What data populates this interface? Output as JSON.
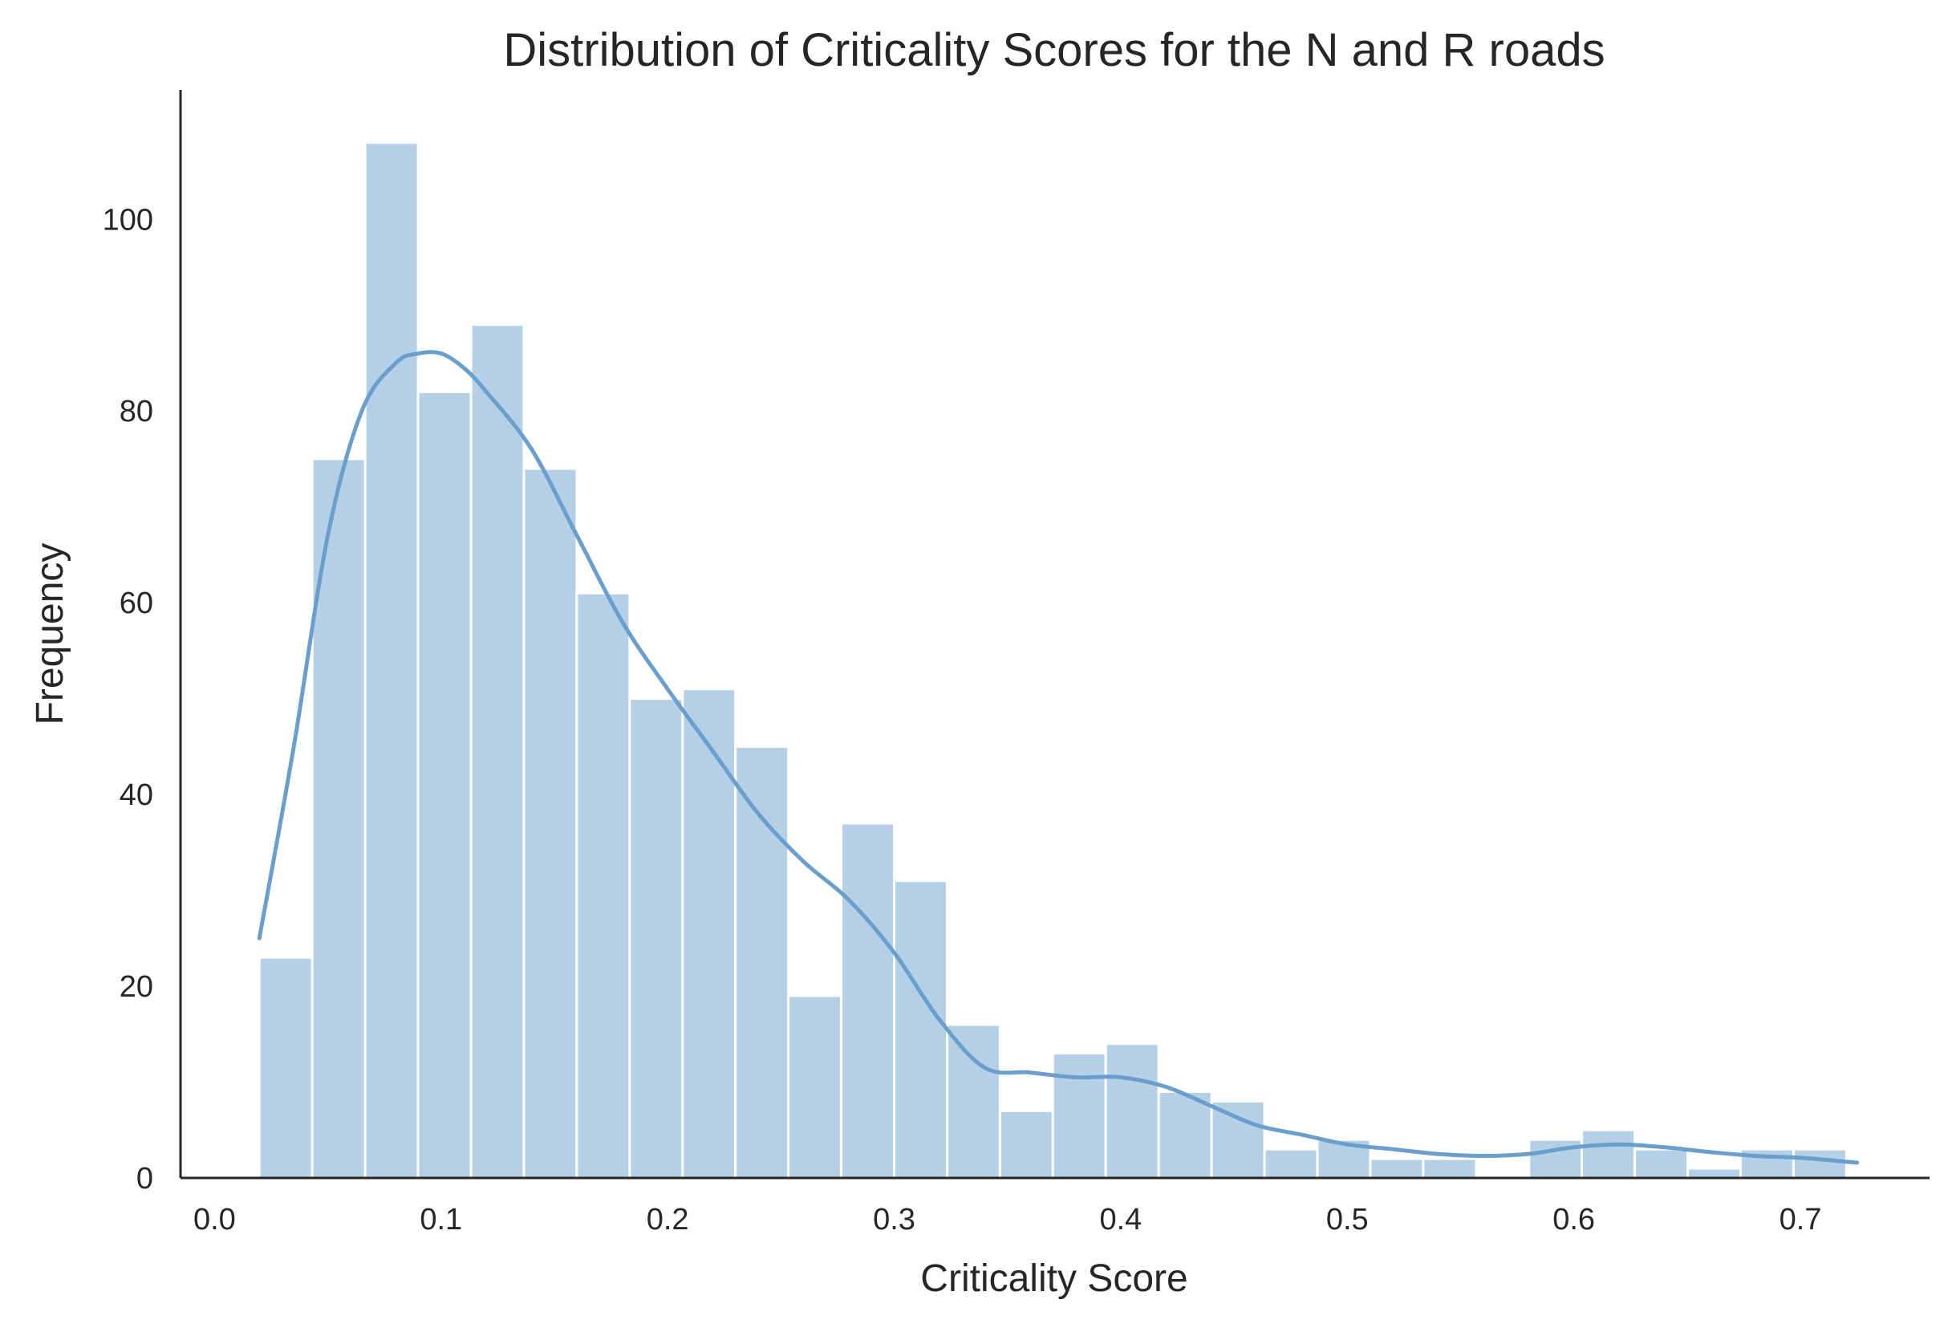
{
  "chart_data": {
    "type": "bar",
    "title": "Distribution of Criticality Scores for the N and R roads",
    "xlabel": "Criticality Score",
    "ylabel": "Frequency",
    "xlim": [
      -0.015,
      0.757
    ],
    "ylim": [
      0,
      113.5
    ],
    "xticks": [
      0.0,
      0.1,
      0.2,
      0.3,
      0.4,
      0.5,
      0.6,
      0.7
    ],
    "xtick_labels": [
      "0.0",
      "0.1",
      "0.2",
      "0.3",
      "0.4",
      "0.5",
      "0.6",
      "0.7"
    ],
    "yticks": [
      0,
      20,
      40,
      60,
      80,
      100
    ],
    "ytick_labels": [
      "0",
      "20",
      "40",
      "60",
      "80",
      "100"
    ],
    "grid": false,
    "bin_start": 0.0198,
    "bin_width": 0.02335,
    "series": [
      {
        "values": [
          23,
          75,
          108,
          82,
          89,
          74,
          61,
          50,
          51,
          45,
          19,
          37,
          31,
          16,
          7,
          13,
          14,
          9,
          8,
          3,
          4,
          2,
          2,
          0,
          4,
          5,
          3,
          1,
          3,
          3
        ],
        "color": "#b4cfe6"
      }
    ],
    "kde": {
      "color": "#6a9fcd",
      "x": [
        0.0198,
        0.035,
        0.05,
        0.065,
        0.08,
        0.09,
        0.1,
        0.11,
        0.12,
        0.14,
        0.16,
        0.18,
        0.2,
        0.22,
        0.24,
        0.26,
        0.28,
        0.3,
        0.32,
        0.34,
        0.36,
        0.38,
        0.4,
        0.42,
        0.44,
        0.46,
        0.48,
        0.5,
        0.52,
        0.54,
        0.56,
        0.58,
        0.6,
        0.62,
        0.64,
        0.66,
        0.68,
        0.7,
        0.725
      ],
      "y": [
        25,
        45,
        67,
        80,
        85,
        86,
        86,
        84.5,
        82,
        76,
        67,
        58,
        51,
        44.5,
        38,
        33,
        29,
        23.5,
        16.5,
        11.5,
        11,
        10.5,
        10.5,
        9.5,
        7.5,
        5.5,
        4.5,
        3.5,
        3,
        2.5,
        2.3,
        2.5,
        3.2,
        3.5,
        3.2,
        2.7,
        2.3,
        2.1,
        1.6
      ]
    }
  }
}
